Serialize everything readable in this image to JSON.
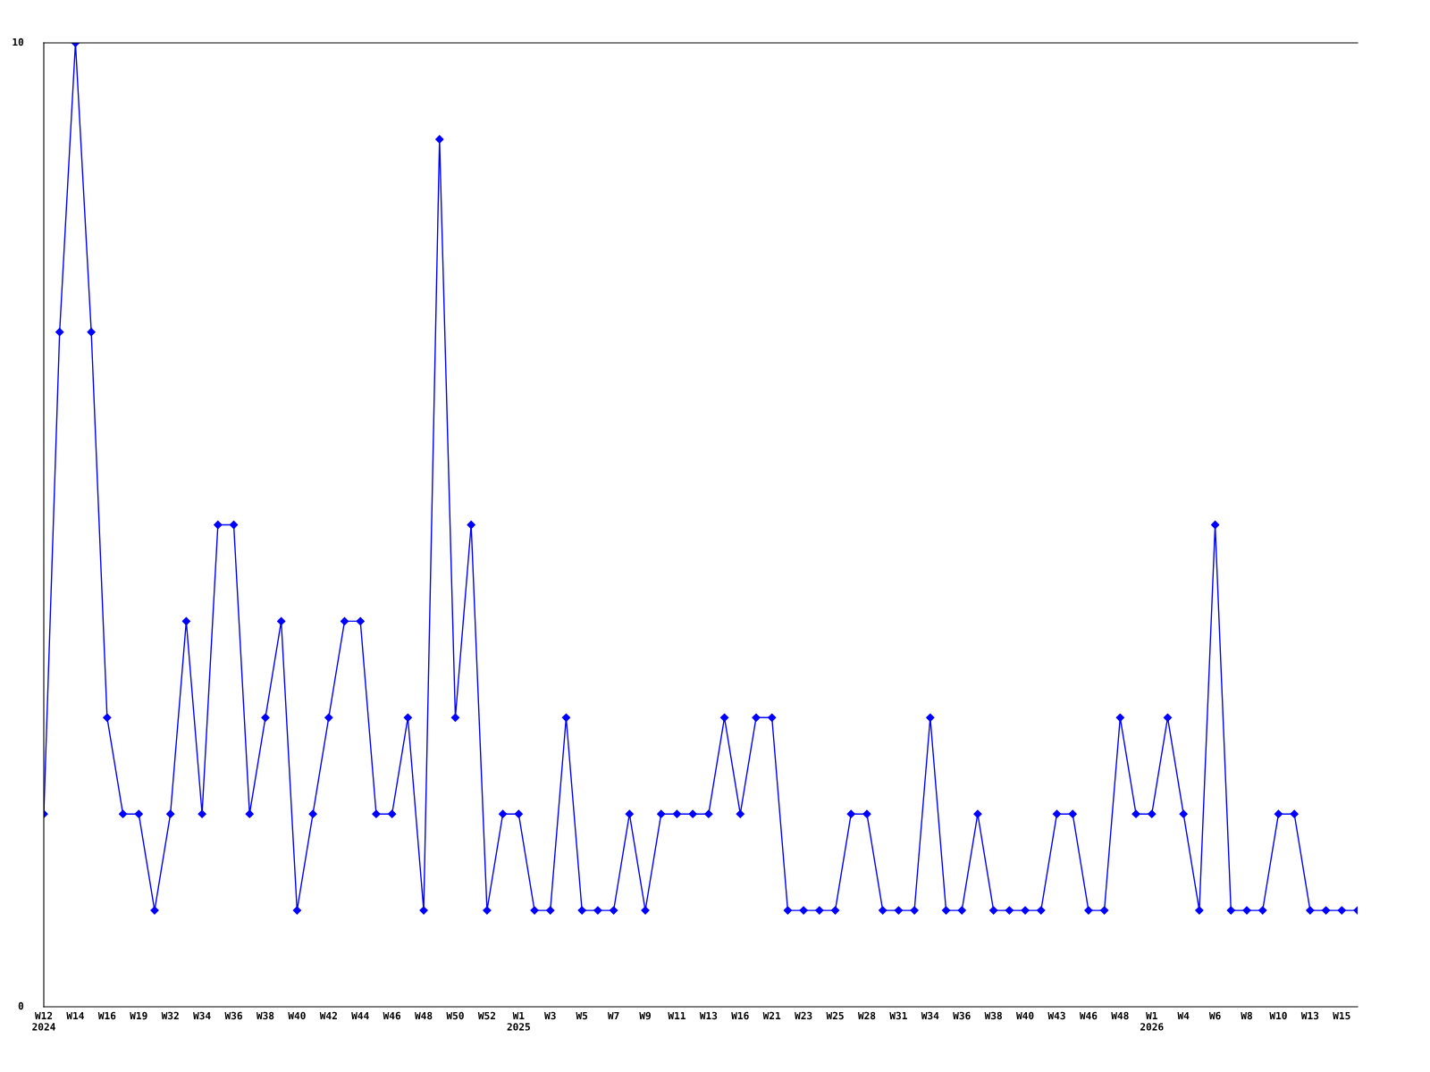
{
  "chart_data": {
    "type": "line",
    "categories": [
      "W12\n2024",
      null,
      "W14",
      null,
      "W16",
      null,
      "W19",
      null,
      "W32",
      null,
      "W34",
      null,
      "W36",
      null,
      "W38",
      null,
      "W40",
      null,
      "W42",
      null,
      "W44",
      null,
      "W46",
      null,
      "W48",
      null,
      "W50",
      null,
      "W52",
      null,
      "W1\n2025",
      null,
      "W3",
      null,
      "W5",
      null,
      "W7",
      null,
      "W9",
      null,
      "W11",
      null,
      "W13",
      null,
      "W16",
      null,
      "W21",
      null,
      "W23",
      null,
      "W25",
      null,
      "W28",
      null,
      "W31",
      null,
      "W34",
      null,
      "W36",
      null,
      "W38",
      null,
      "W40",
      null,
      "W43",
      null,
      "W46",
      null,
      "W48",
      null,
      "W1\n2026",
      null,
      "W4",
      null,
      "W6",
      null,
      "W8",
      null,
      "W10",
      null,
      "W13",
      null,
      "W15",
      null
    ],
    "series": [
      {
        "color": "#0000ff",
        "values": [
          2,
          7,
          10,
          7,
          3,
          2,
          2,
          1,
          2,
          4,
          2,
          5,
          5,
          2,
          3,
          4,
          1,
          2,
          3,
          4,
          4,
          2,
          2,
          3,
          1,
          9,
          3,
          5,
          1,
          2,
          2,
          1,
          1,
          3,
          1,
          1,
          1,
          2,
          1,
          2,
          2,
          2,
          2,
          3,
          2,
          3,
          3,
          1,
          1,
          1,
          1,
          2,
          2,
          1,
          1,
          1,
          3,
          1,
          1,
          2,
          1,
          1,
          1,
          1,
          2,
          2,
          1,
          1,
          3,
          2,
          2,
          3,
          2,
          1,
          5,
          1,
          1,
          1,
          2,
          2,
          1,
          1,
          1,
          1
        ]
      }
    ],
    "ylim": [
      0,
      10
    ],
    "yticks": [
      0,
      10
    ],
    "grid": false,
    "marker": "diamond",
    "line_style": "solid"
  }
}
